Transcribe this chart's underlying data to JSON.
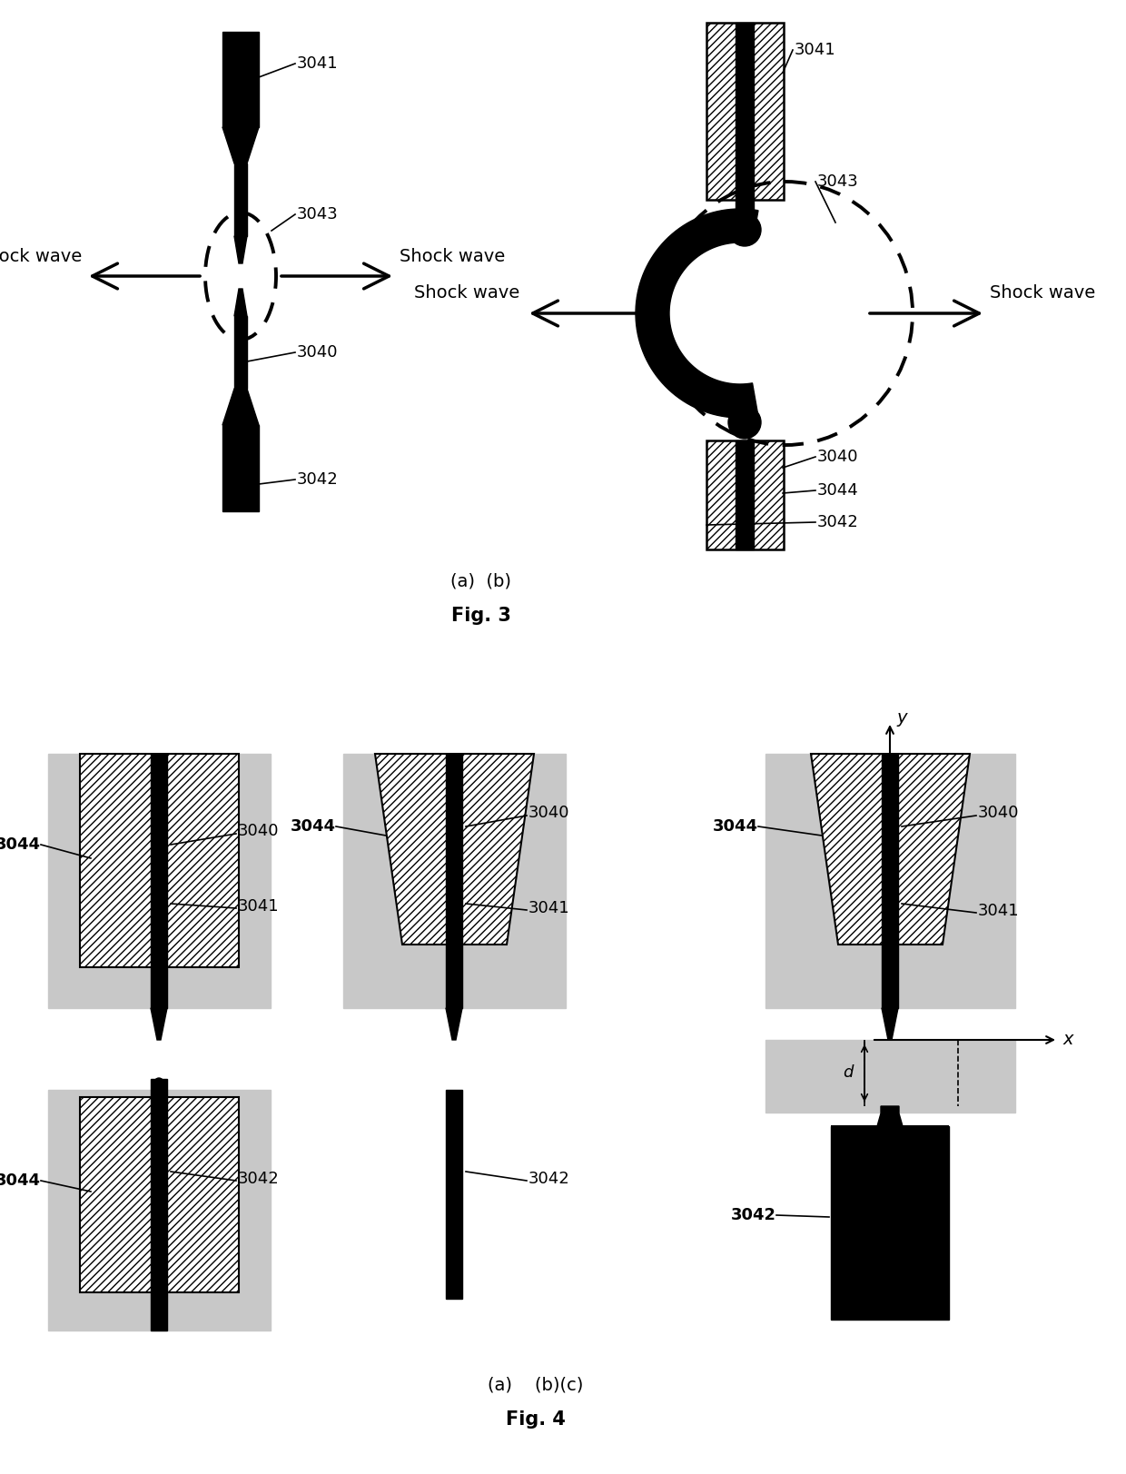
{
  "bg_color": "#ffffff",
  "black": "#000000",
  "sand_color": "#c8c8c8",
  "shock_wave_text": "Shock wave",
  "fig3_sub": "(a)  (b)",
  "fig4_sub": "(a)    (b)(c)",
  "fig3_title": "Fig. 3",
  "fig4_title": "Fig. 4"
}
